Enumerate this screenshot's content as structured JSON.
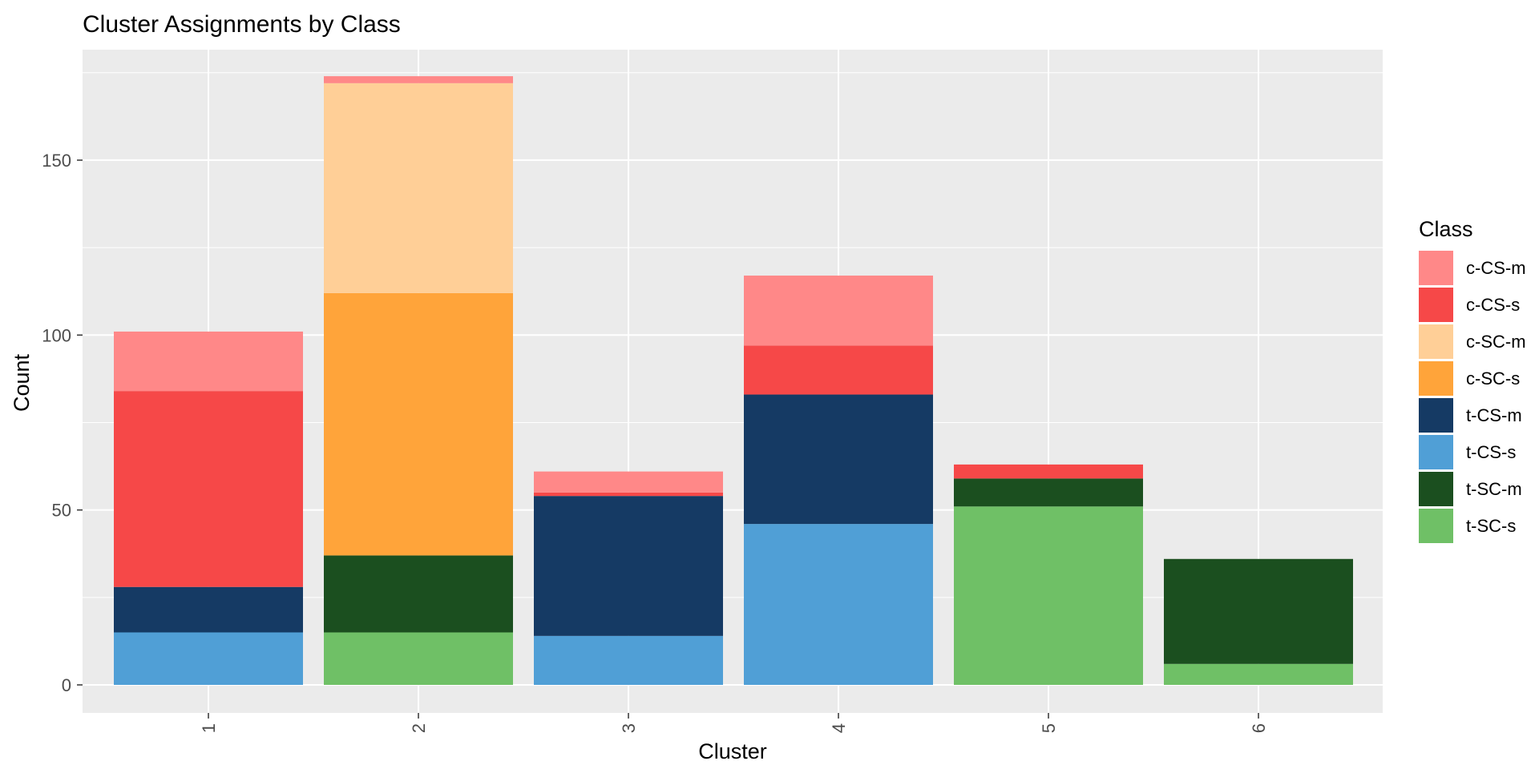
{
  "chart_data": {
    "type": "bar",
    "stacked": true,
    "title": "Cluster Assignments by Class",
    "xlabel": "Cluster",
    "ylabel": "Count",
    "categories": [
      "1",
      "2",
      "3",
      "4",
      "5",
      "6"
    ],
    "ylim": [
      0,
      180
    ],
    "yticks": [
      0,
      50,
      100,
      150
    ],
    "grid": true,
    "legend": {
      "title": "Class",
      "position": "right"
    },
    "series": [
      {
        "name": "c-CS-m",
        "color": "#FF8888",
        "values": [
          17,
          2,
          6,
          20,
          0,
          0
        ]
      },
      {
        "name": "c-CS-s",
        "color": "#F64848",
        "values": [
          56,
          0,
          1,
          14,
          4,
          0
        ]
      },
      {
        "name": "c-SC-m",
        "color": "#FFCF97",
        "values": [
          0,
          60,
          0,
          0,
          0,
          0
        ]
      },
      {
        "name": "c-SC-s",
        "color": "#FFA43A",
        "values": [
          0,
          75,
          0,
          0,
          0,
          0
        ]
      },
      {
        "name": "t-CS-m",
        "color": "#153A64",
        "values": [
          13,
          0,
          40,
          37,
          0,
          0
        ]
      },
      {
        "name": "t-CS-s",
        "color": "#509FD6",
        "values": [
          15,
          0,
          14,
          46,
          0,
          0
        ]
      },
      {
        "name": "t-SC-m",
        "color": "#1B4F1F",
        "values": [
          0,
          22,
          0,
          0,
          8,
          30
        ]
      },
      {
        "name": "t-SC-s",
        "color": "#6FC066",
        "values": [
          0,
          15,
          0,
          0,
          51,
          6
        ]
      }
    ]
  }
}
